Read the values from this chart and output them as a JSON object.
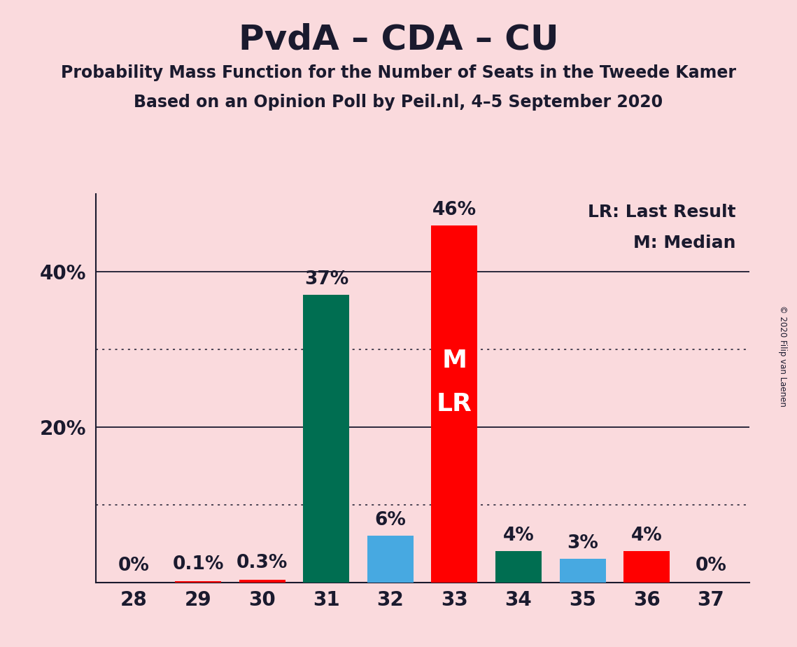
{
  "title": "PvdA – CDA – CU",
  "subtitle1": "Probability Mass Function for the Number of Seats in the Tweede Kamer",
  "subtitle2": "Based on an Opinion Poll by Peil.nl, 4–5 September 2020",
  "copyright": "© 2020 Filip van Laenen",
  "legend_line1": "LR: Last Result",
  "legend_line2": "M: Median",
  "background_color": "#FADADD",
  "categories": [
    28,
    29,
    30,
    31,
    32,
    33,
    34,
    35,
    36,
    37
  ],
  "values": [
    0.0,
    0.1,
    0.3,
    37.0,
    6.0,
    46.0,
    4.0,
    3.0,
    4.0,
    0.0
  ],
  "labels": [
    "0%",
    "0.1%",
    "0.3%",
    "37%",
    "6%",
    "46%",
    "4%",
    "3%",
    "4%",
    "0%"
  ],
  "colors": [
    "#FF0000",
    "#FF0000",
    "#FF0000",
    "#006E51",
    "#47A9E1",
    "#FF0000",
    "#006E51",
    "#47A9E1",
    "#FF0000",
    "#FF0000"
  ],
  "ylim": [
    0,
    50
  ],
  "dotted_lines": [
    10,
    30
  ],
  "solid_lines": [
    20,
    40
  ],
  "ytick_positions": [
    20,
    40
  ],
  "ytick_labels": [
    "20%",
    "40%"
  ],
  "median_bar_idx": 5,
  "title_fontsize": 36,
  "subtitle_fontsize": 17,
  "tick_fontsize": 20,
  "annotation_fontsize": 19,
  "legend_fontsize": 18,
  "ml_fontsize": 26
}
